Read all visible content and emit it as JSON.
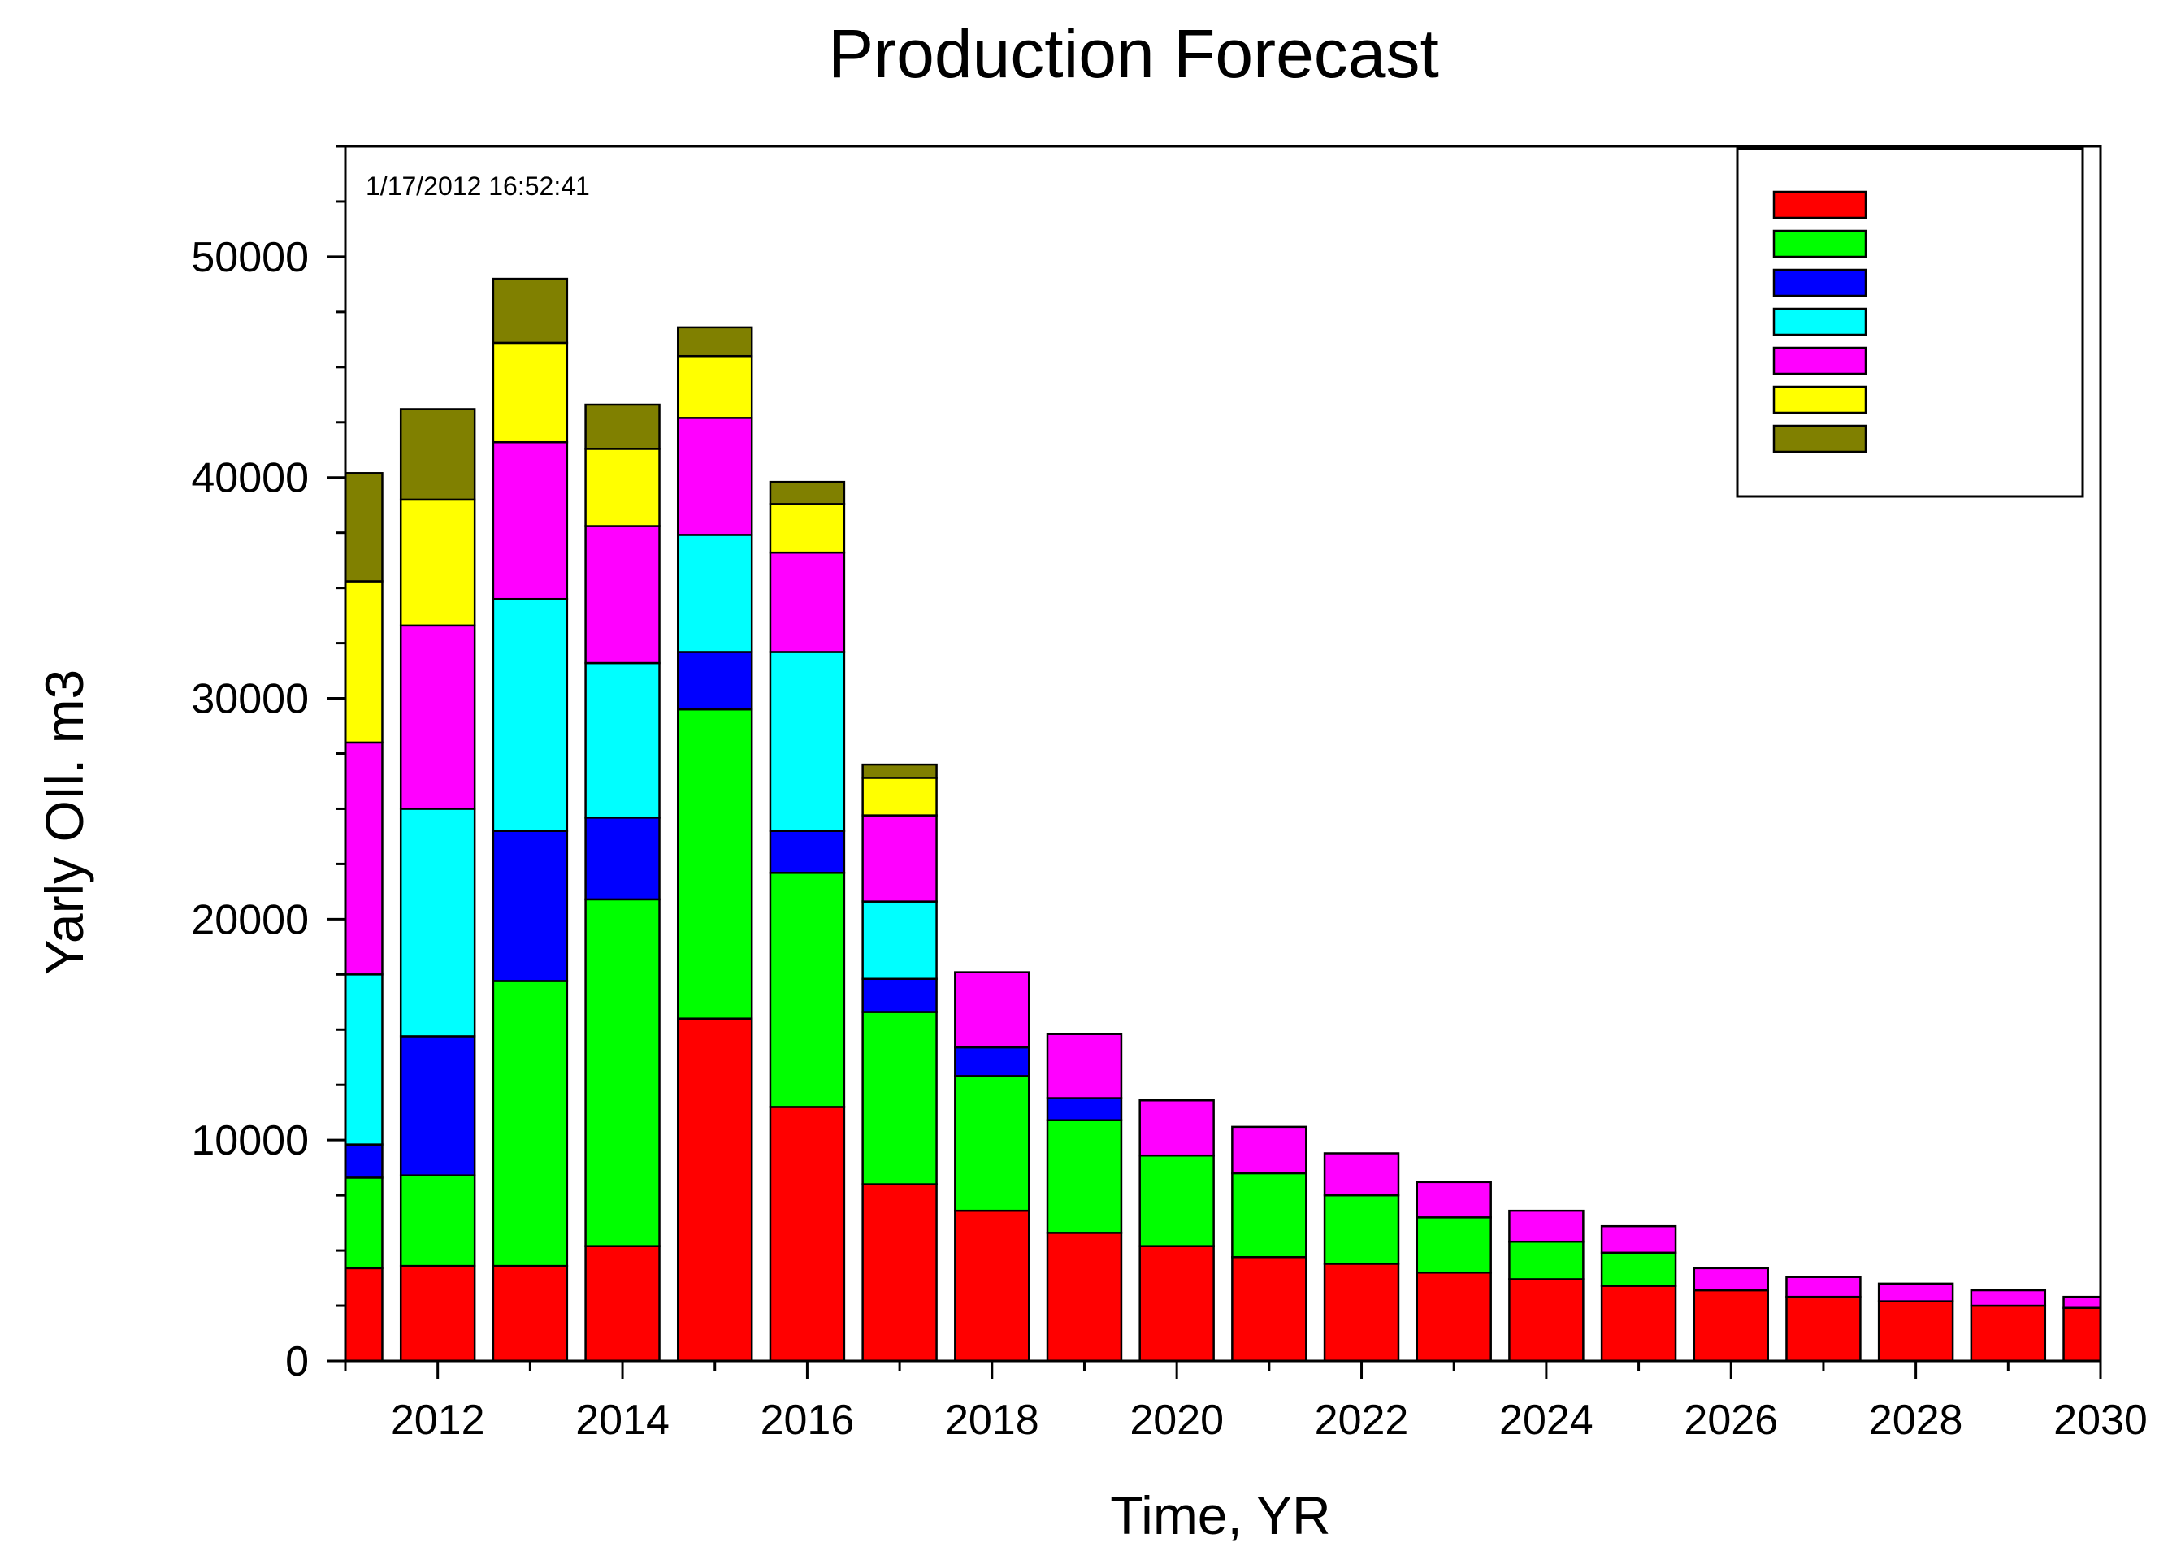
{
  "chart_data": {
    "type": "bar",
    "stacked": true,
    "title": "Production Forecast",
    "timestamp": "1/17/2012 16:52:41",
    "xlabel": "Time, YR",
    "ylabel": "Yarly OIl. m3",
    "xlim": [
      2011,
      2030
    ],
    "ylim": [
      0,
      55000
    ],
    "xticks": [
      2012,
      2014,
      2016,
      2018,
      2020,
      2022,
      2024,
      2026,
      2028,
      2030
    ],
    "yticks": [
      0,
      10000,
      20000,
      30000,
      40000,
      50000
    ],
    "grid": false,
    "legend_position": "top-right",
    "years": [
      2011,
      2012,
      2013,
      2014,
      2015,
      2016,
      2017,
      2018,
      2019,
      2020,
      2021,
      2022,
      2023,
      2024,
      2025,
      2026,
      2027,
      2028,
      2029,
      2030
    ],
    "series": [
      {
        "name": "",
        "color": "#ff0000",
        "values": [
          4200,
          4300,
          4300,
          5200,
          15500,
          11500,
          8000,
          6800,
          5800,
          5200,
          4700,
          4400,
          4000,
          3700,
          3400,
          3200,
          2900,
          2700,
          2500,
          2400
        ]
      },
      {
        "name": "",
        "color": "#00ff00",
        "values": [
          4100,
          4100,
          12900,
          15700,
          14000,
          10600,
          7800,
          6100,
          5100,
          4100,
          3800,
          3100,
          2500,
          1700,
          1500,
          0,
          0,
          0,
          0,
          0
        ]
      },
      {
        "name": "",
        "color": "#0000ff",
        "values": [
          1500,
          6300,
          6800,
          3700,
          2600,
          1900,
          1500,
          1300,
          1000,
          0,
          0,
          0,
          0,
          0,
          0,
          0,
          0,
          0,
          0,
          0
        ]
      },
      {
        "name": "",
        "color": "#00ffff",
        "values": [
          7700,
          10300,
          10500,
          7000,
          5300,
          8100,
          3500,
          0,
          0,
          0,
          0,
          0,
          0,
          0,
          0,
          0,
          0,
          0,
          0,
          0
        ]
      },
      {
        "name": "",
        "color": "#ff00ff",
        "values": [
          10500,
          8300,
          7100,
          6200,
          5300,
          4500,
          3900,
          3400,
          2900,
          2500,
          2100,
          1900,
          1600,
          1400,
          1200,
          1000,
          900,
          800,
          700,
          500
        ]
      },
      {
        "name": "",
        "color": "#ffff00",
        "values": [
          7300,
          5700,
          4500,
          3500,
          2800,
          2200,
          1700,
          0,
          0,
          0,
          0,
          0,
          0,
          0,
          0,
          0,
          0,
          0,
          0,
          0
        ]
      },
      {
        "name": "",
        "color": "#808000",
        "values": [
          4900,
          4100,
          2900,
          2000,
          1300,
          1000,
          600,
          0,
          0,
          0,
          0,
          0,
          0,
          0,
          0,
          0,
          0,
          0,
          0,
          0
        ]
      }
    ]
  }
}
